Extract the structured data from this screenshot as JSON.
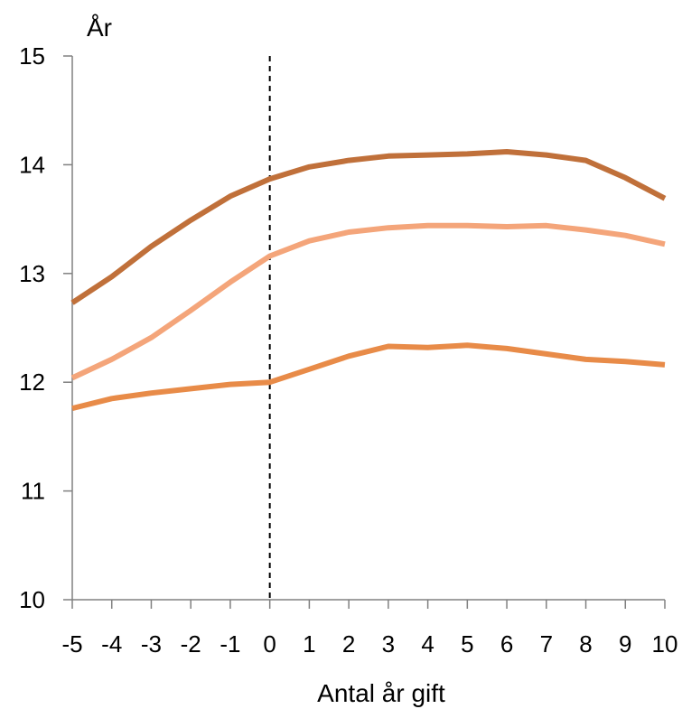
{
  "chart_data": {
    "type": "line",
    "title": "",
    "ylabel": "År",
    "xlabel": "Antal år gift",
    "x": [
      -5,
      -4,
      -3,
      -2,
      -1,
      0,
      1,
      2,
      3,
      4,
      5,
      6,
      7,
      8,
      9,
      10
    ],
    "x_tick_labels": [
      "-5",
      "-4",
      "-3",
      "-2",
      "-1",
      "0",
      "1",
      "2",
      "3",
      "4",
      "5",
      "6",
      "7",
      "8",
      "9",
      "10"
    ],
    "ylim": [
      10,
      15
    ],
    "y_ticks": [
      10,
      11,
      12,
      13,
      14,
      15
    ],
    "y_tick_labels": [
      "10",
      "11",
      "12",
      "13",
      "14",
      "15"
    ],
    "reference_line_x": 0,
    "grid": false,
    "legend": "none",
    "series": [
      {
        "color": "#C0703A",
        "values": [
          12.73,
          12.97,
          13.25,
          13.49,
          13.71,
          13.87,
          13.98,
          14.04,
          14.08,
          14.09,
          14.1,
          14.12,
          14.09,
          14.04,
          13.88,
          13.69
        ]
      },
      {
        "color": "#F4A57A",
        "values": [
          12.04,
          12.21,
          12.41,
          12.66,
          12.92,
          13.16,
          13.3,
          13.38,
          13.42,
          13.44,
          13.44,
          13.43,
          13.44,
          13.4,
          13.35,
          13.27
        ]
      },
      {
        "color": "#E88B48",
        "values": [
          11.76,
          11.85,
          11.9,
          11.94,
          11.98,
          12.0,
          12.12,
          12.24,
          12.33,
          12.32,
          12.34,
          12.31,
          12.26,
          12.21,
          12.19,
          12.16
        ]
      }
    ]
  }
}
